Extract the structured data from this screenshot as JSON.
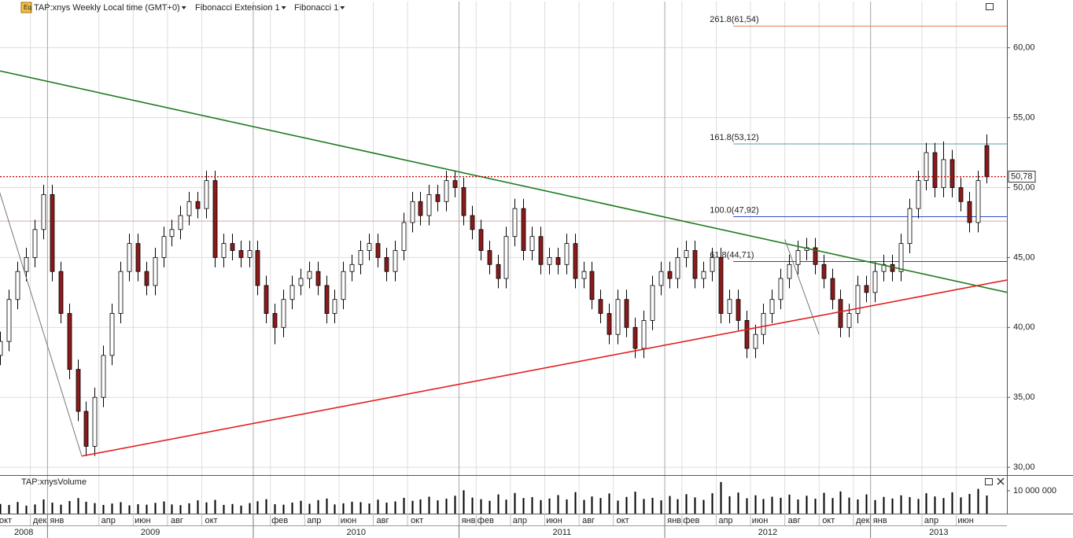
{
  "chart_data": {
    "type": "candlestick",
    "header": [
      "TAP:xnys Weekly Local time (GMT+0)",
      "Fibonacci Extension 1",
      "Fibonacci 1"
    ],
    "xlim": [
      "2008-10",
      "2013-09"
    ],
    "ylim": [
      29.5,
      63.3
    ],
    "yticks": [
      {
        "value": 30,
        "label": "30,00"
      },
      {
        "value": 35,
        "label": "35,00"
      },
      {
        "value": 40,
        "label": "40,00"
      },
      {
        "value": 45,
        "label": "45,00"
      },
      {
        "value": 50,
        "label": "50,00"
      },
      {
        "value": 55,
        "label": "55,00"
      },
      {
        "value": 60,
        "label": "60,00"
      }
    ],
    "xticks": [
      {
        "value": "2008-10",
        "label": "окт"
      },
      {
        "value": "2008-12",
        "label": "дек"
      },
      {
        "value": "2009-01",
        "label": "янв"
      },
      {
        "value": "2009-04",
        "label": "апр"
      },
      {
        "value": "2009-06",
        "label": "июн"
      },
      {
        "value": "2009-08",
        "label": "авг"
      },
      {
        "value": "2009-10",
        "label": "окт"
      },
      {
        "value": "2010-02",
        "label": "фев"
      },
      {
        "value": "2010-04",
        "label": "апр"
      },
      {
        "value": "2010-06",
        "label": "июн"
      },
      {
        "value": "2010-08",
        "label": "авг"
      },
      {
        "value": "2010-10",
        "label": "окт"
      },
      {
        "value": "2011-01",
        "label": "янв"
      },
      {
        "value": "2011-02",
        "label": "фев"
      },
      {
        "value": "2011-04",
        "label": "апр"
      },
      {
        "value": "2011-06",
        "label": "июн"
      },
      {
        "value": "2011-08",
        "label": "авг"
      },
      {
        "value": "2011-10",
        "label": "окт"
      },
      {
        "value": "2012-01",
        "label": "янв"
      },
      {
        "value": "2012-02",
        "label": "фев"
      },
      {
        "value": "2012-04",
        "label": "апр"
      },
      {
        "value": "2012-06",
        "label": "июн"
      },
      {
        "value": "2012-08",
        "label": "авг"
      },
      {
        "value": "2012-10",
        "label": "окт"
      },
      {
        "value": "2012-12",
        "label": "дек"
      },
      {
        "value": "2013-01",
        "label": "янв"
      },
      {
        "value": "2013-04",
        "label": "апр"
      },
      {
        "value": "2013-06",
        "label": "июн"
      }
    ],
    "years": [
      "2008",
      "2009",
      "2010",
      "2011",
      "2012",
      "2013"
    ],
    "grid": true,
    "up_color": "#ffffff",
    "down_color": "#8b1a1a",
    "x": [
      "2008-10",
      "2008-10",
      "2008-11",
      "2008-11",
      "2008-12",
      "2008-12",
      "2009-01",
      "2009-01",
      "2009-02",
      "2009-02",
      "2009-03",
      "2009-03",
      "2009-04",
      "2009-04",
      "2009-05",
      "2009-05",
      "2009-06",
      "2009-06",
      "2009-07",
      "2009-07",
      "2009-08",
      "2009-08",
      "2009-09",
      "2009-09",
      "2009-10",
      "2009-10",
      "2009-11",
      "2009-11",
      "2009-12",
      "2009-12",
      "2010-01",
      "2010-01",
      "2010-02",
      "2010-02",
      "2010-03",
      "2010-03",
      "2010-04",
      "2010-04",
      "2010-05",
      "2010-05",
      "2010-06",
      "2010-06",
      "2010-07",
      "2010-07",
      "2010-08",
      "2010-08",
      "2010-09",
      "2010-09",
      "2010-10",
      "2010-10",
      "2010-11",
      "2010-11",
      "2010-12",
      "2010-12",
      "2011-01",
      "2011-01",
      "2011-02",
      "2011-02",
      "2011-03",
      "2011-03",
      "2011-04",
      "2011-04",
      "2011-05",
      "2011-05",
      "2011-06",
      "2011-06",
      "2011-07",
      "2011-07",
      "2011-08",
      "2011-08",
      "2011-09",
      "2011-09",
      "2011-10",
      "2011-10",
      "2011-11",
      "2011-11",
      "2011-12",
      "2011-12",
      "2012-01",
      "2012-01",
      "2012-02",
      "2012-02",
      "2012-03",
      "2012-03",
      "2012-04",
      "2012-04",
      "2012-05",
      "2012-05",
      "2012-06",
      "2012-06",
      "2012-07",
      "2012-07",
      "2012-08",
      "2012-08",
      "2012-09",
      "2012-09",
      "2012-10",
      "2012-10",
      "2012-11",
      "2012-11",
      "2012-12",
      "2012-12",
      "2013-01",
      "2013-01",
      "2013-02",
      "2013-02",
      "2013-03",
      "2013-03",
      "2013-04",
      "2013-04",
      "2013-05",
      "2013-05",
      "2013-06",
      "2013-06",
      "2013-07",
      "2013-07"
    ],
    "ohlc": [
      [
        38,
        39.7,
        37.3,
        39
      ],
      [
        39,
        42.7,
        38.3,
        42
      ],
      [
        42,
        44.7,
        41.3,
        44
      ],
      [
        44,
        45.7,
        43.3,
        45
      ],
      [
        45,
        47.7,
        44.3,
        47
      ],
      [
        47,
        50.2,
        46.3,
        49.5
      ],
      [
        49.5,
        50.2,
        43.3,
        44
      ],
      [
        44,
        44.7,
        40.3,
        41
      ],
      [
        41,
        41.7,
        36.3,
        37
      ],
      [
        37,
        37.7,
        33.3,
        34
      ],
      [
        34,
        34.7,
        30.8,
        31.5
      ],
      [
        31.5,
        35.7,
        30.8,
        35
      ],
      [
        35,
        38.7,
        34.3,
        38
      ],
      [
        38,
        41.7,
        37.3,
        41
      ],
      [
        41,
        44.7,
        40.3,
        44
      ],
      [
        44,
        46.7,
        43.3,
        46
      ],
      [
        46,
        46.7,
        43.3,
        44
      ],
      [
        44,
        44.7,
        42.3,
        43
      ],
      [
        43,
        45.7,
        42.3,
        45
      ],
      [
        45,
        47.2,
        44.3,
        46.5
      ],
      [
        46.5,
        47.7,
        45.8,
        47
      ],
      [
        47,
        48.7,
        46.3,
        48
      ],
      [
        48,
        49.7,
        47.3,
        49
      ],
      [
        49,
        49.7,
        47.8,
        48.5
      ],
      [
        48.5,
        51.2,
        47.8,
        50.5
      ],
      [
        50.5,
        51.2,
        44.3,
        45
      ],
      [
        45,
        46.7,
        44.3,
        46
      ],
      [
        46,
        46.7,
        44.8,
        45.5
      ],
      [
        45.5,
        46.2,
        44.3,
        45
      ],
      [
        45,
        46.2,
        44.3,
        45.5
      ],
      [
        45.5,
        46.2,
        42.3,
        43
      ],
      [
        43,
        43.7,
        40.3,
        41
      ],
      [
        41,
        41.7,
        38.8,
        40
      ],
      [
        40,
        42.7,
        39.3,
        42
      ],
      [
        42,
        43.7,
        41.3,
        43
      ],
      [
        43,
        44.2,
        42.3,
        43.5
      ],
      [
        43.5,
        44.7,
        42.8,
        44
      ],
      [
        44,
        44.7,
        42.3,
        43
      ],
      [
        43,
        43.7,
        40.3,
        41
      ],
      [
        41,
        42.7,
        40.3,
        42
      ],
      [
        42,
        44.7,
        41.3,
        44
      ],
      [
        44,
        45.2,
        43.3,
        44.5
      ],
      [
        44.5,
        46.2,
        43.8,
        45.5
      ],
      [
        45.5,
        46.7,
        44.8,
        46
      ],
      [
        46,
        46.7,
        44.3,
        45
      ],
      [
        45,
        45.7,
        43.3,
        44
      ],
      [
        44,
        46.2,
        43.3,
        45.5
      ],
      [
        45.5,
        48.2,
        44.8,
        47.5
      ],
      [
        47.5,
        49.7,
        46.8,
        49
      ],
      [
        49,
        49.7,
        47.3,
        48
      ],
      [
        48,
        50.2,
        47.3,
        49.5
      ],
      [
        49.5,
        50.2,
        48.3,
        49
      ],
      [
        49,
        51.2,
        48.3,
        50.5
      ],
      [
        50.5,
        51.2,
        49.3,
        50
      ],
      [
        50,
        50.7,
        47.3,
        48
      ],
      [
        48,
        48.7,
        46.3,
        47
      ],
      [
        47,
        47.7,
        44.8,
        45.5
      ],
      [
        45.5,
        46.2,
        43.8,
        44.5
      ],
      [
        44.5,
        45.2,
        42.8,
        43.5
      ],
      [
        43.5,
        47.2,
        42.8,
        46.5
      ],
      [
        46.5,
        49.2,
        45.8,
        48.5
      ],
      [
        48.5,
        49.2,
        44.8,
        45.5
      ],
      [
        45.5,
        47.2,
        44.8,
        46.5
      ],
      [
        46.5,
        47.2,
        43.8,
        44.5
      ],
      [
        44.5,
        45.7,
        43.8,
        45
      ],
      [
        45,
        45.7,
        43.8,
        44.5
      ],
      [
        44.5,
        46.7,
        43.8,
        46
      ],
      [
        46,
        46.7,
        42.8,
        43.5
      ],
      [
        43.5,
        44.7,
        42.8,
        44
      ],
      [
        44,
        44.7,
        41.3,
        42
      ],
      [
        42,
        42.7,
        40.3,
        41
      ],
      [
        41,
        41.7,
        38.8,
        39.5
      ],
      [
        39.5,
        42.7,
        38.8,
        42
      ],
      [
        42,
        42.7,
        39.3,
        40
      ],
      [
        40,
        40.7,
        37.8,
        38.5
      ],
      [
        38.5,
        41.2,
        37.8,
        40.5
      ],
      [
        40.5,
        43.7,
        39.8,
        43
      ],
      [
        43,
        44.7,
        42.3,
        44
      ],
      [
        44,
        44.7,
        42.8,
        43.5
      ],
      [
        43.5,
        45.7,
        42.8,
        45
      ],
      [
        45,
        46.2,
        44.3,
        45.5
      ],
      [
        45.5,
        46.2,
        42.8,
        43.5
      ],
      [
        43.5,
        44.7,
        42.8,
        44
      ],
      [
        44,
        45.7,
        43.3,
        45
      ],
      [
        45,
        45.7,
        40.3,
        41
      ],
      [
        41,
        42.7,
        40.3,
        42
      ],
      [
        42,
        42.7,
        39.8,
        40.5
      ],
      [
        40.5,
        41.2,
        37.8,
        38.5
      ],
      [
        38.5,
        40.2,
        37.8,
        39.5
      ],
      [
        39.5,
        41.7,
        38.8,
        41
      ],
      [
        41,
        42.7,
        40.3,
        42
      ],
      [
        42,
        44.2,
        41.3,
        43.5
      ],
      [
        43.5,
        45.2,
        42.8,
        44.5
      ],
      [
        44.5,
        46.2,
        43.8,
        45.5
      ],
      [
        45.5,
        46.4,
        44.8,
        45.7
      ],
      [
        45.7,
        46.4,
        43.8,
        44.5
      ],
      [
        44.5,
        45.2,
        42.8,
        43.5
      ],
      [
        43.5,
        44.2,
        41.3,
        42
      ],
      [
        42,
        42.7,
        39.3,
        40
      ],
      [
        40,
        41.7,
        39.3,
        41
      ],
      [
        41,
        43.7,
        40.3,
        43
      ],
      [
        43,
        43.7,
        41.8,
        42.5
      ],
      [
        42.5,
        44.7,
        41.8,
        44
      ],
      [
        44,
        45.2,
        43.3,
        44.5
      ],
      [
        44.5,
        45.2,
        43.3,
        44
      ],
      [
        44,
        46.7,
        43.3,
        46
      ],
      [
        46,
        49.2,
        45.3,
        48.5
      ],
      [
        48.5,
        51.2,
        47.8,
        50.5
      ],
      [
        50.5,
        53.2,
        49.8,
        52.5
      ],
      [
        52.5,
        53.2,
        49.3,
        50
      ],
      [
        50,
        53.3,
        49.3,
        52
      ],
      [
        52,
        52.7,
        49.3,
        50
      ],
      [
        50,
        50.7,
        48.3,
        49
      ],
      [
        49,
        49.7,
        46.8,
        47.5
      ],
      [
        47.5,
        51.2,
        46.8,
        50.5
      ],
      [
        53,
        53.8,
        50.3,
        50.78
      ]
    ],
    "trendlines": [
      {
        "color": "#1f7a1f",
        "points": [
          [
            "2008-10",
            58.4
          ],
          [
            "2013-09",
            42.5
          ]
        ]
      },
      {
        "color": "#e02020",
        "points": [
          [
            "2009-03",
            30.8
          ],
          [
            "2013-09",
            43.4
          ]
        ]
      },
      {
        "color": "#777777",
        "points": [
          [
            "2008-10",
            50.5
          ],
          [
            "2009-03",
            30.8
          ]
        ]
      },
      {
        "color": "#777777",
        "points": [
          [
            "2012-08",
            46.3
          ],
          [
            "2012-10",
            39.5
          ]
        ]
      }
    ],
    "fibonacci": [
      {
        "label": "261.8(61,54)",
        "value": 61.54,
        "color": "#e07b4f"
      },
      {
        "label": "161.8(53,12)",
        "value": 53.12,
        "color": "#5b9ea0"
      },
      {
        "label": "100.0(47,92)",
        "value": 47.92,
        "color": "#2f4fd0"
      },
      {
        "label": "61.8(44,71)",
        "value": 44.71,
        "color": "#7a1fa0"
      }
    ],
    "fib_start": "2012-05",
    "level": {
      "value": 47.6,
      "color": "#d8a8a8"
    },
    "last_price": {
      "value": 50.78,
      "label": "50,78",
      "color": "#c00000"
    },
    "volume": {
      "title": "TAP:xnysVolume",
      "ylim": [
        0,
        16500000
      ],
      "yticks": [
        {
          "value": 10000000,
          "label": "10 000 000"
        }
      ],
      "color": "#000000",
      "values": [
        4200000,
        3800000,
        5100000,
        3500000,
        4000000,
        6200000,
        4800000,
        3900000,
        5500000,
        6800000,
        5200000,
        4600000,
        3800000,
        4400000,
        5000000,
        3600000,
        4100000,
        3900000,
        4700000,
        5300000,
        4000000,
        3700000,
        4500000,
        5800000,
        4900000,
        6000000,
        3800000,
        4200000,
        3500000,
        4600000,
        5400000,
        6300000,
        4100000,
        3900000,
        4800000,
        5600000,
        4300000,
        5900000,
        6600000,
        4000000,
        4500000,
        5200000,
        5000000,
        4400000,
        6100000,
        4800000,
        5300000,
        6900000,
        5600000,
        6200000,
        7400000,
        5800000,
        6500000,
        7800000,
        10200000,
        7000000,
        6300000,
        5600000,
        8400000,
        6100000,
        9000000,
        6800000,
        7200000,
        5900000,
        6600000,
        8100000,
        6200000,
        9400000,
        6000000,
        7500000,
        6800000,
        8800000,
        5700000,
        7300000,
        9600000,
        6400000,
        6900000,
        5800000,
        7700000,
        6300000,
        8500000,
        7100000,
        6000000,
        8900000,
        13800000,
        7600000,
        9200000,
        6700000,
        8000000,
        6400000,
        7400000,
        6900000,
        8300000,
        6200000,
        7800000,
        6500000,
        9100000,
        6800000,
        9700000,
        7000000,
        6200000,
        8400000,
        5900000,
        7300000,
        6600000,
        8000000,
        7200000,
        6400000,
        8900000,
        7500000,
        6800000,
        9300000,
        7100000,
        8600000,
        10800000,
        7900000
      ]
    }
  }
}
